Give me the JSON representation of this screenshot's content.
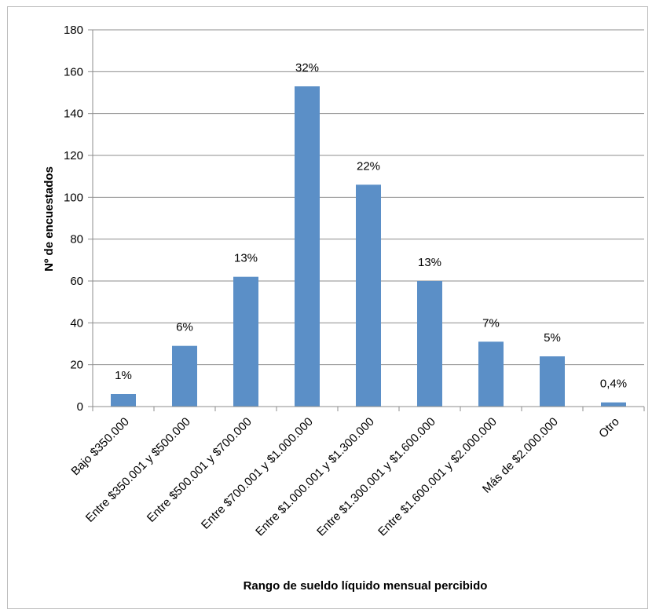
{
  "chart_data": {
    "type": "bar",
    "title": "",
    "xlabel": "Rango de sueldo líquido mensual percibido",
    "ylabel": "Nº de encuestados",
    "ylim": [
      0,
      180
    ],
    "yticks": [
      0,
      20,
      40,
      60,
      80,
      100,
      120,
      140,
      160,
      180
    ],
    "grid": true,
    "legend": "none",
    "bar_color": "#5b8fc7",
    "categories": [
      "Bajo $350.000",
      "Entre $350.001 y $500.000",
      "Entre $500.001 y $700.000",
      "Entre $700.001 y $1.000.000",
      "Entre $1.000.001 y $1.300.000",
      "Entre $1.300.001 y $1.600.000",
      "Entre $1.600.001 y $2.000.000",
      "Más de $2.000.000",
      "Otro"
    ],
    "values": [
      6,
      29,
      62,
      153,
      106,
      60,
      31,
      24,
      2
    ],
    "data_labels": [
      "1%",
      "6%",
      "13%",
      "32%",
      "22%",
      "13%",
      "7%",
      "5%",
      "0,4%"
    ]
  }
}
